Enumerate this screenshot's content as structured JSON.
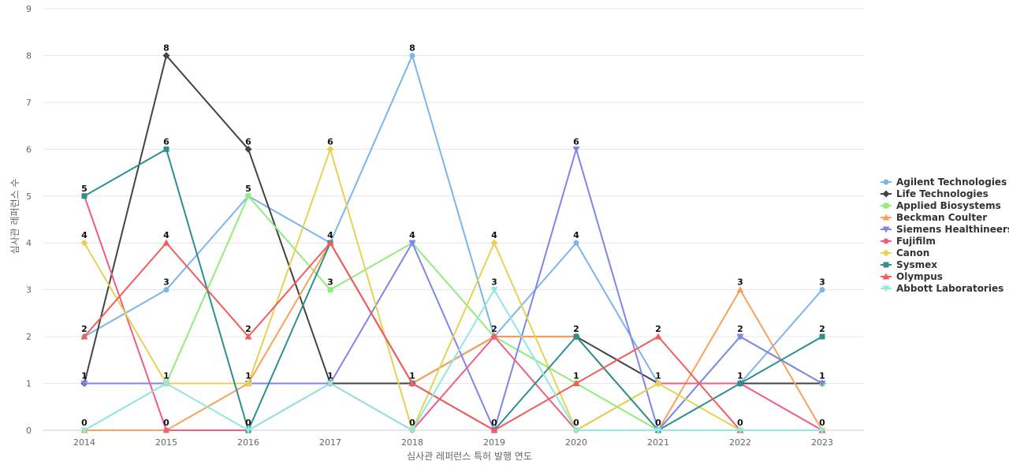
{
  "chart_data": {
    "type": "line",
    "title": "",
    "xlabel": "심사관 레퍼런스 특허 발행 연도",
    "ylabel": "심사관 레퍼런스 수",
    "x": [
      "2014",
      "2015",
      "2016",
      "2017",
      "2018",
      "2019",
      "2020",
      "2021",
      "2022",
      "2023"
    ],
    "ylim": [
      0,
      9
    ],
    "yticks": [
      0,
      1,
      2,
      3,
      4,
      5,
      6,
      7,
      8,
      9
    ],
    "grid": true,
    "legend_position": "right",
    "series": [
      {
        "name": "Agilent Technologies",
        "color": "#7cb5ec",
        "marker": "circle",
        "values": [
          2,
          3,
          5,
          4,
          8,
          2,
          4,
          1,
          1,
          3
        ]
      },
      {
        "name": "Life Technologies",
        "color": "#434348",
        "marker": "diamond",
        "values": [
          1,
          8,
          6,
          1,
          1,
          2,
          2,
          1,
          1,
          1
        ]
      },
      {
        "name": "Applied Biosystems",
        "color": "#90ed7d",
        "marker": "square",
        "values": [
          0,
          1,
          5,
          3,
          4,
          2,
          1,
          0,
          2,
          1
        ]
      },
      {
        "name": "Beckman Coulter",
        "color": "#f7a35c",
        "marker": "triangle",
        "values": [
          0,
          0,
          1,
          4,
          1,
          2,
          2,
          0,
          3,
          0
        ]
      },
      {
        "name": "Siemens Healthineers",
        "color": "#8085e9",
        "marker": "triangle-down",
        "values": [
          1,
          1,
          1,
          1,
          4,
          0,
          6,
          0,
          2,
          1
        ]
      },
      {
        "name": "Fujifilm",
        "color": "#f15c80",
        "marker": "circle",
        "values": [
          5,
          0,
          0,
          1,
          0,
          2,
          0,
          1,
          1,
          0
        ]
      },
      {
        "name": "Canon",
        "color": "#e4d354",
        "marker": "diamond",
        "values": [
          4,
          1,
          1,
          6,
          0,
          4,
          0,
          1,
          0,
          0
        ]
      },
      {
        "name": "Sysmex",
        "color": "#2b908f",
        "marker": "square",
        "values": [
          5,
          6,
          0,
          4,
          1,
          0,
          2,
          0,
          1,
          2
        ]
      },
      {
        "name": "Olympus",
        "color": "#f45b5b",
        "marker": "triangle",
        "values": [
          2,
          4,
          2,
          4,
          1,
          0,
          1,
          2,
          0,
          0
        ]
      },
      {
        "name": "Abbott Laboratories",
        "color": "#91e8e1",
        "marker": "triangle-down",
        "values": [
          0,
          1,
          0,
          1,
          0,
          3,
          0,
          0,
          0,
          0
        ]
      }
    ],
    "data_labels": [
      {
        "x": "2014",
        "labels": [
          0,
          1,
          2,
          4,
          5
        ]
      },
      {
        "x": "2015",
        "labels": [
          0,
          1,
          3,
          4,
          6,
          8
        ]
      },
      {
        "x": "2016",
        "labels": [
          0,
          1,
          2,
          5,
          6
        ]
      },
      {
        "x": "2017",
        "labels": [
          1,
          3,
          4,
          6
        ]
      },
      {
        "x": "2018",
        "labels": [
          0,
          1,
          4,
          8
        ]
      },
      {
        "x": "2019",
        "labels": [
          0,
          2,
          3,
          4
        ]
      },
      {
        "x": "2020",
        "labels": [
          0,
          1,
          2,
          4,
          6
        ]
      },
      {
        "x": "2021",
        "labels": [
          0,
          1,
          2
        ]
      },
      {
        "x": "2022",
        "labels": [
          0,
          1,
          2,
          3
        ]
      },
      {
        "x": "2023",
        "labels": [
          0,
          1,
          2,
          3
        ]
      }
    ]
  }
}
